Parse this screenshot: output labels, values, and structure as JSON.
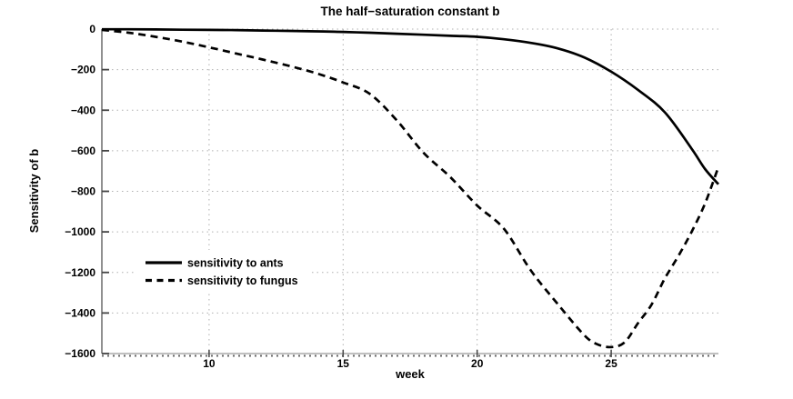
{
  "figure": {
    "title": "The half−saturation constant b",
    "background": "#ffffff"
  },
  "axes": {
    "xlabel": "week",
    "ylabel": "Sensitivity of b",
    "x_ticks": [
      10,
      15,
      20,
      25
    ],
    "x_tick_labels": [
      "10",
      "15",
      "20",
      "25"
    ],
    "y_ticks": [
      0,
      -200,
      -400,
      -600,
      -800,
      -1000,
      -1200,
      -1400,
      -1600
    ],
    "y_tick_labels": [
      "0",
      "−200",
      "−400",
      "−600",
      "−800",
      "−1000",
      "−1200",
      "−1400",
      "−1600"
    ],
    "grid": "dotted"
  },
  "legend": {
    "items": [
      {
        "label": "sensitivity to ants",
        "line_style": "solid"
      },
      {
        "label": "sensitivity to fungus",
        "line_style": "dashed"
      }
    ]
  },
  "colors": {
    "curve": "#000000",
    "grid": "#b0b0b0",
    "axis_x": "#999999",
    "axis_y": "#555555",
    "tick": "#444444",
    "minor_tick": "#666666"
  },
  "chart_data": {
    "type": "line",
    "title": "The half−saturation constant b",
    "xlabel": "week",
    "ylabel": "Sensitivity of b",
    "xlim": [
      6,
      29
    ],
    "ylim": [
      -1600,
      0
    ],
    "grid": true,
    "legend_position": "left-center",
    "series": [
      {
        "name": "sensitivity to ants",
        "style": "solid",
        "color": "#000000",
        "x": [
          6,
          7,
          8,
          9,
          10,
          11,
          12,
          13,
          14,
          15,
          16,
          17,
          18,
          19,
          20,
          21,
          22,
          23,
          24,
          25,
          26,
          27,
          28,
          28.5,
          29
        ],
        "y": [
          -1,
          -1,
          -2,
          -3,
          -4,
          -5,
          -7,
          -9,
          -11,
          -14,
          -18,
          -23,
          -28,
          -33,
          -38,
          -50,
          -68,
          -95,
          -140,
          -210,
          -300,
          -410,
          -590,
          -690,
          -765
        ]
      },
      {
        "name": "sensitivity to fungus",
        "style": "dashed",
        "color": "#000000",
        "x": [
          6,
          7,
          8,
          9,
          10,
          11,
          12,
          13,
          14,
          15,
          16,
          17,
          18,
          19,
          20,
          21,
          22,
          23,
          24,
          24.5,
          25,
          25.5,
          26,
          26.5,
          27,
          27.5,
          28,
          28.5,
          29
        ],
        "y": [
          -4,
          -18,
          -38,
          -62,
          -90,
          -120,
          -150,
          -182,
          -218,
          -263,
          -320,
          -450,
          -610,
          -730,
          -870,
          -985,
          -1190,
          -1355,
          -1510,
          -1555,
          -1568,
          -1545,
          -1450,
          -1360,
          -1230,
          -1120,
          -1000,
          -860,
          -680
        ]
      }
    ]
  }
}
